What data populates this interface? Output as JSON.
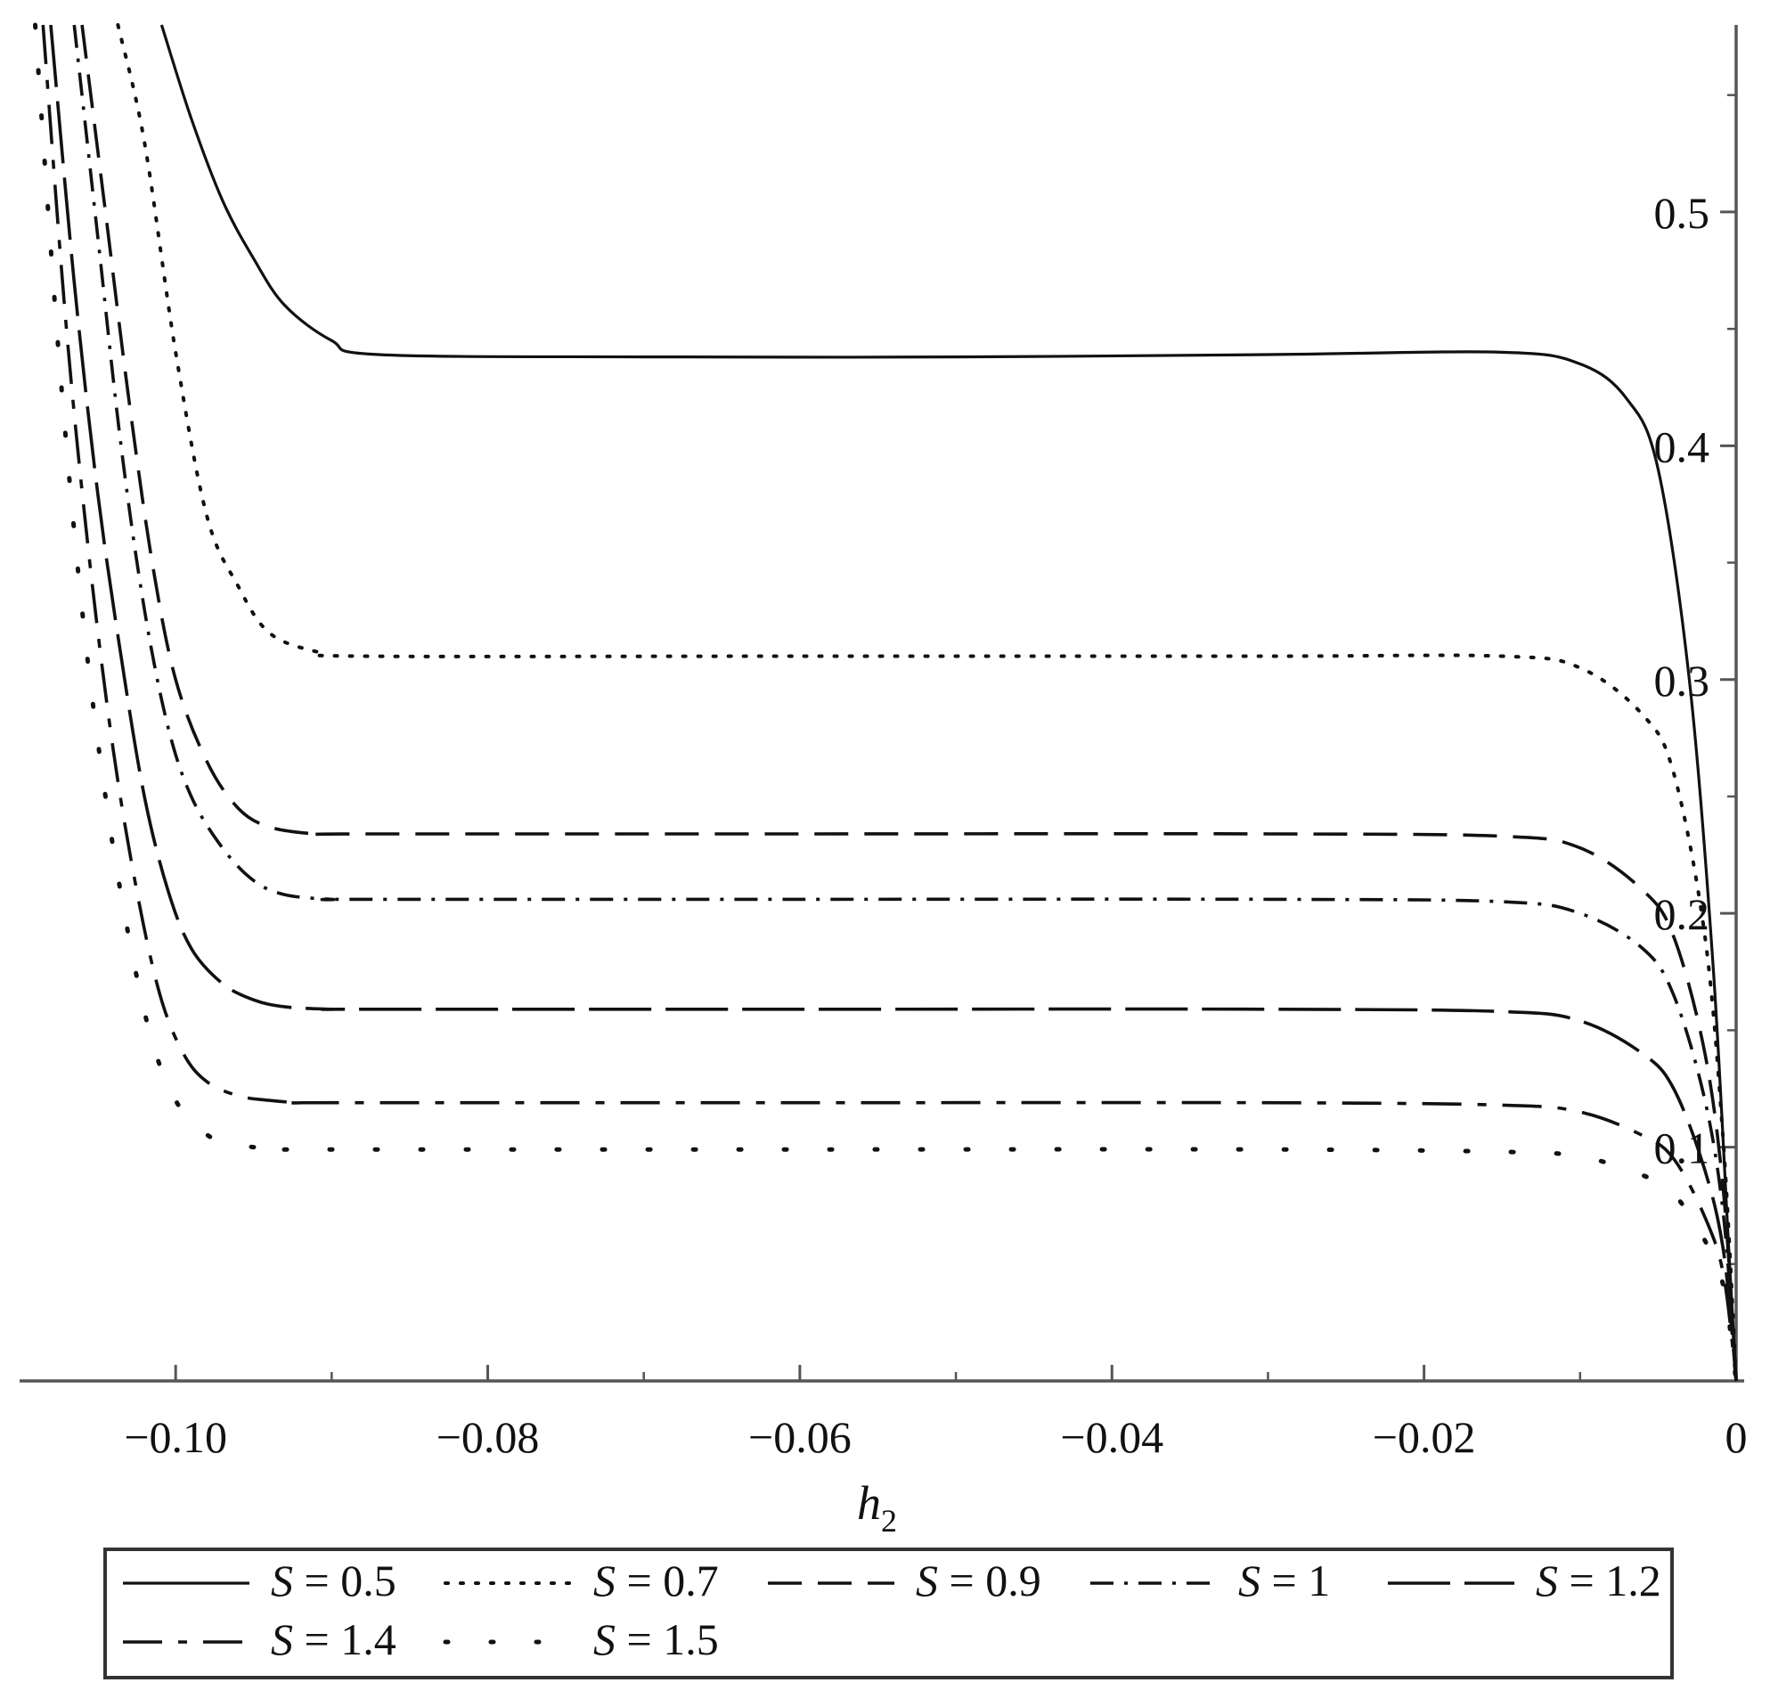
{
  "chart_data": {
    "type": "line",
    "title": "",
    "xlabel": "h",
    "xlabel_subscript": "2",
    "ylabel": "",
    "xlim": [
      -0.11,
      0
    ],
    "ylim": [
      0,
      0.58
    ],
    "x_ticks": [
      -0.1,
      -0.08,
      -0.06,
      -0.04,
      -0.02,
      0
    ],
    "x_tick_labels": [
      "−0.10",
      "−0.08",
      "−0.06",
      "−0.04",
      "−0.02",
      "0"
    ],
    "y_ticks": [
      0.1,
      0.2,
      0.3,
      0.4,
      0.5
    ],
    "y_tick_labels": [
      "0.1",
      "0.2",
      "0.3",
      "0.4",
      "0.5"
    ],
    "y_axis_position": "right (at h2 = 0)",
    "grid": false,
    "legend_position": "bottom",
    "series": [
      {
        "name": "S = 0.5",
        "symbol": "S",
        "value_text": "= 0.5",
        "style": "solid",
        "x": [
          -0.1009,
          -0.099,
          -0.097,
          -0.095,
          -0.093,
          -0.09,
          -0.087,
          -0.07,
          -0.05,
          -0.03,
          -0.015,
          -0.01,
          -0.007,
          -0.005,
          -0.003,
          -0.0015,
          -0.0005,
          0
        ],
        "y": [
          0.58,
          0.54,
          0.505,
          0.48,
          0.46,
          0.445,
          0.439,
          0.438,
          0.438,
          0.439,
          0.44,
          0.435,
          0.42,
          0.39,
          0.3,
          0.18,
          0.06,
          0
        ]
      },
      {
        "name": "S = 0.7",
        "symbol": "S",
        "value_text": "= 0.7",
        "style": "dotted",
        "x": [
          -0.1037,
          -0.102,
          -0.1,
          -0.098,
          -0.096,
          -0.094,
          -0.091,
          -0.088,
          -0.06,
          -0.03,
          -0.015,
          -0.01,
          -0.006,
          -0.004,
          -0.002,
          -0.0008,
          0
        ],
        "y": [
          0.58,
          0.53,
          0.44,
          0.37,
          0.34,
          0.32,
          0.312,
          0.31,
          0.31,
          0.31,
          0.31,
          0.305,
          0.285,
          0.26,
          0.19,
          0.1,
          0
        ]
      },
      {
        "name": "S = 0.9",
        "symbol": "S",
        "value_text": "= 0.9",
        "style": "dashed",
        "x": [
          -0.106,
          -0.1045,
          -0.103,
          -0.1015,
          -0.1,
          -0.098,
          -0.096,
          -0.094,
          -0.091,
          -0.088,
          -0.06,
          -0.03,
          -0.015,
          -0.01,
          -0.006,
          -0.004,
          -0.002,
          -0.0008,
          0
        ],
        "y": [
          0.58,
          0.5,
          0.42,
          0.35,
          0.3,
          0.265,
          0.245,
          0.237,
          0.234,
          0.234,
          0.234,
          0.234,
          0.233,
          0.228,
          0.21,
          0.19,
          0.14,
          0.08,
          0
        ]
      },
      {
        "name": "S = 1",
        "symbol": "S",
        "value_text": "= 1",
        "style": "dashdot",
        "x": [
          -0.1065,
          -0.105,
          -0.1035,
          -0.102,
          -0.1005,
          -0.099,
          -0.097,
          -0.095,
          -0.093,
          -0.09,
          -0.088,
          -0.06,
          -0.03,
          -0.015,
          -0.01,
          -0.006,
          -0.004,
          -0.002,
          -0.0008,
          0
        ],
        "y": [
          0.58,
          0.49,
          0.4,
          0.33,
          0.28,
          0.25,
          0.228,
          0.214,
          0.208,
          0.206,
          0.206,
          0.206,
          0.206,
          0.205,
          0.2,
          0.185,
          0.165,
          0.12,
          0.07,
          0
        ]
      },
      {
        "name": "S = 1.2",
        "symbol": "S",
        "value_text": "= 1.2",
        "style": "longdash",
        "x": [
          -0.108,
          -0.1065,
          -0.105,
          -0.1035,
          -0.102,
          -0.1005,
          -0.099,
          -0.097,
          -0.095,
          -0.093,
          -0.09,
          -0.088,
          -0.06,
          -0.03,
          -0.015,
          -0.01,
          -0.006,
          -0.004,
          -0.002,
          -0.0008,
          0
        ],
        "y": [
          0.58,
          0.47,
          0.38,
          0.31,
          0.25,
          0.21,
          0.185,
          0.17,
          0.163,
          0.16,
          0.159,
          0.159,
          0.159,
          0.159,
          0.158,
          0.154,
          0.14,
          0.125,
          0.09,
          0.055,
          0
        ]
      },
      {
        "name": "S = 1.4",
        "symbol": "S",
        "value_text": "= 1.4",
        "style": "longdashdot",
        "x": [
          -0.1085,
          -0.107,
          -0.1055,
          -0.104,
          -0.1025,
          -0.101,
          -0.0995,
          -0.098,
          -0.096,
          -0.094,
          -0.092,
          -0.09,
          -0.06,
          -0.03,
          -0.015,
          -0.01,
          -0.006,
          -0.004,
          -0.002,
          -0.0008,
          0
        ],
        "y": [
          0.58,
          0.45,
          0.35,
          0.27,
          0.21,
          0.165,
          0.14,
          0.128,
          0.122,
          0.12,
          0.119,
          0.119,
          0.119,
          0.119,
          0.118,
          0.115,
          0.105,
          0.095,
          0.07,
          0.045,
          0
        ]
      },
      {
        "name": "S = 1.5",
        "symbol": "S",
        "value_text": "= 1.5",
        "style": "sparse-dotted",
        "x": [
          -0.109,
          -0.1075,
          -0.106,
          -0.1045,
          -0.103,
          -0.1015,
          -0.1,
          -0.0985,
          -0.097,
          -0.095,
          -0.093,
          -0.09,
          -0.06,
          -0.03,
          -0.015,
          -0.01,
          -0.006,
          -0.004,
          -0.002,
          -0.0008,
          0
        ],
        "y": [
          0.58,
          0.44,
          0.33,
          0.25,
          0.19,
          0.145,
          0.12,
          0.108,
          0.102,
          0.1,
          0.099,
          0.099,
          0.099,
          0.099,
          0.098,
          0.096,
          0.088,
          0.08,
          0.06,
          0.04,
          0
        ]
      }
    ]
  }
}
